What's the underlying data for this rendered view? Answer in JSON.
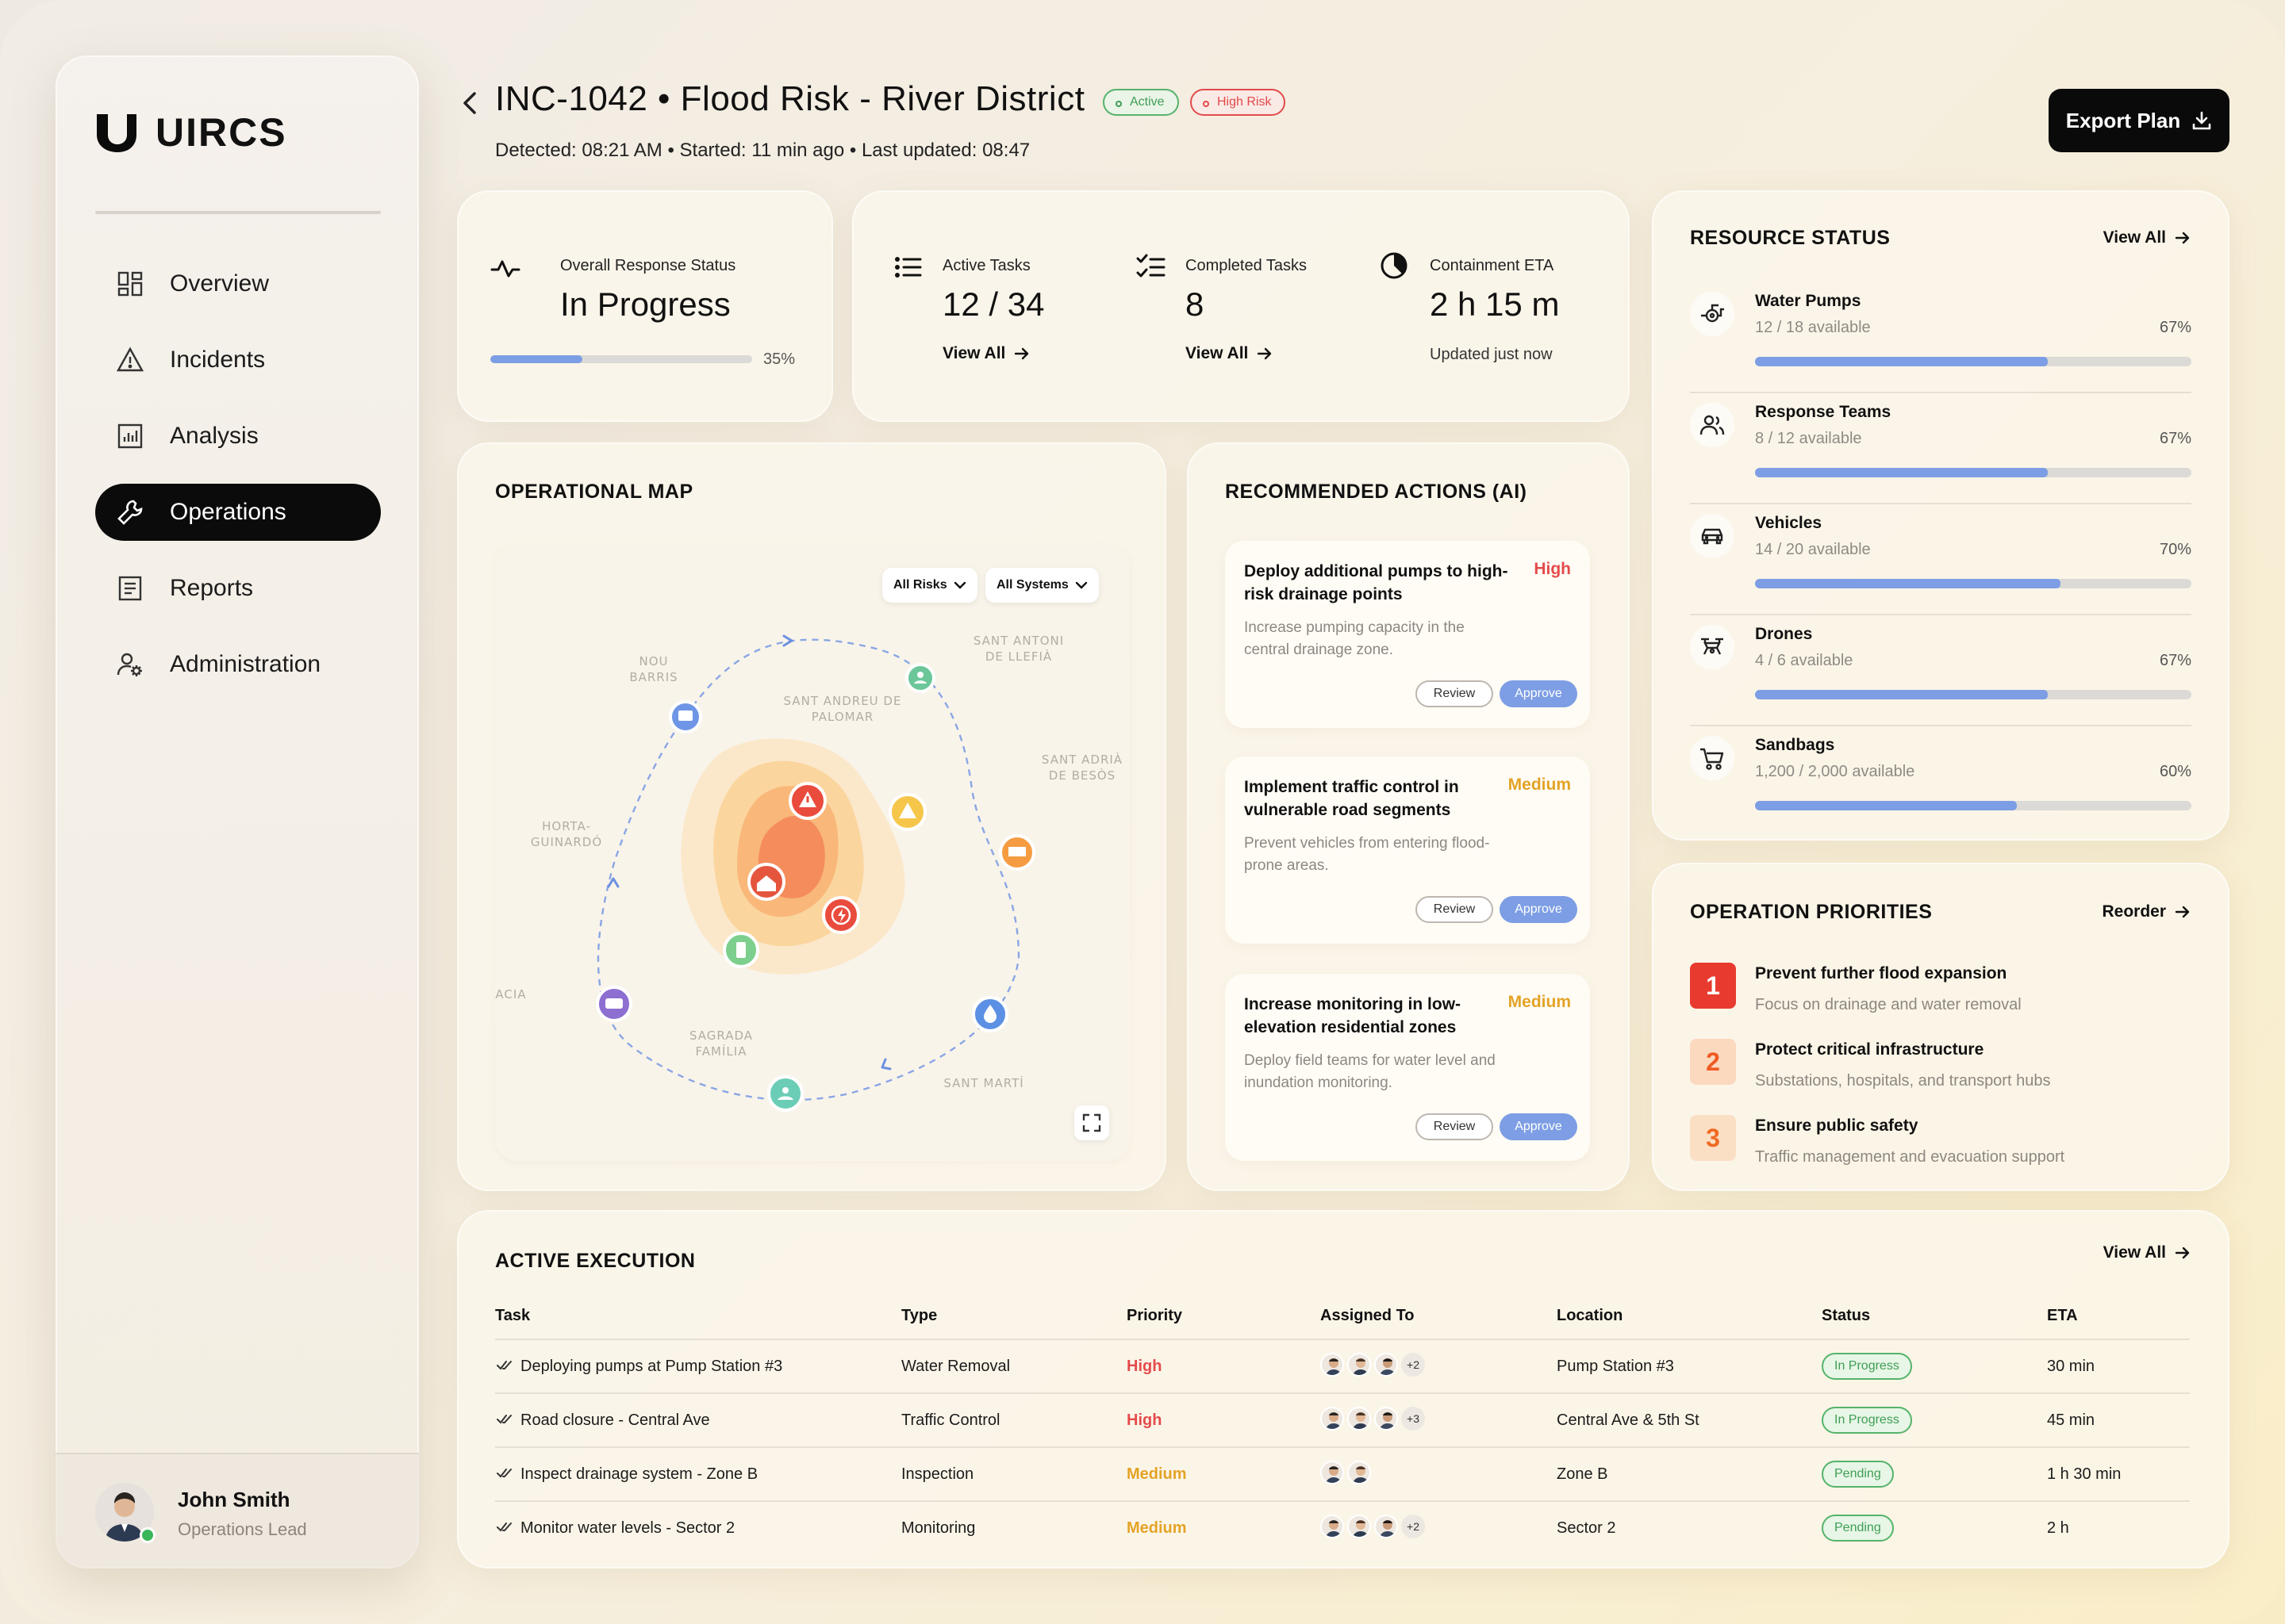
{
  "app": {
    "name": "UIRCS"
  },
  "sidebar": {
    "items": [
      {
        "label": "Overview",
        "icon": "grid-icon",
        "active": false
      },
      {
        "label": "Incidents",
        "icon": "warning-icon",
        "active": false
      },
      {
        "label": "Analysis",
        "icon": "chart-icon",
        "active": false
      },
      {
        "label": "Operations",
        "icon": "wrench-icon",
        "active": true
      },
      {
        "label": "Reports",
        "icon": "document-icon",
        "active": false
      },
      {
        "label": "Administration",
        "icon": "user-gear-icon",
        "active": false
      }
    ],
    "user": {
      "name": "John Smith",
      "role": "Operations Lead",
      "status": "online"
    }
  },
  "header": {
    "title": "INC-1042 • Flood Risk - River District",
    "badges": {
      "active": "Active",
      "risk": "High Risk"
    },
    "subtitle": "Detected: 08:21 AM • Started: 11 min ago • Last updated: 08:47",
    "export_label": "Export Plan"
  },
  "response": {
    "label": "Overall Response Status",
    "value": "In Progress",
    "progress_pct": 35,
    "progress_label": "35%"
  },
  "tasks": {
    "active_label": "Active Tasks",
    "active_value": "12 / 34",
    "completed_label": "Completed Tasks",
    "completed_value": "8",
    "eta_label": "Containment ETA",
    "eta_value": "2 h 15 m",
    "eta_note": "Updated just now",
    "view_all": "View All"
  },
  "resources": {
    "title": "RESOURCE STATUS",
    "view_all": "View All",
    "items": [
      {
        "name": "Water Pumps",
        "available": "12 / 18 available",
        "pct_label": "67%",
        "pct": 67,
        "icon": "pump-icon"
      },
      {
        "name": "Response Teams",
        "available": "8 / 12 available",
        "pct_label": "67%",
        "pct": 67,
        "icon": "team-icon"
      },
      {
        "name": "Vehicles",
        "available": "14 / 20 available",
        "pct_label": "70%",
        "pct": 70,
        "icon": "car-icon"
      },
      {
        "name": "Drones",
        "available": "4 / 6 available",
        "pct_label": "67%",
        "pct": 67,
        "icon": "drone-icon"
      },
      {
        "name": "Sandbags",
        "available": "1,200 / 2,000 available",
        "pct_label": "60%",
        "pct": 60,
        "icon": "cart-icon"
      }
    ]
  },
  "map": {
    "title": "OPERATIONAL MAP",
    "filters": [
      "All Risks",
      "All Systems"
    ],
    "places": [
      "NOU BARRIS",
      "SANT ANDREU DE PALOMAR",
      "SANT ANTONI DE LLEFIÀ",
      "SANT ADRIÀ DE BESÒS",
      "HORTA-GUINARDÓ",
      "ACIA",
      "SAGRADA FAMÍLIA",
      "SANT MARTÍ"
    ]
  },
  "actions": {
    "title": "RECOMMENDED ACTIONS (AI)",
    "review_label": "Review",
    "approve_label": "Approve",
    "items": [
      {
        "title": "Deploy additional pumps to high-risk drainage points",
        "priority": "High",
        "desc": "Increase pumping capacity in the central drainage zone."
      },
      {
        "title": "Implement traffic control in vulnerable road segments",
        "priority": "Medium",
        "desc": "Prevent vehicles from entering flood-prone areas."
      },
      {
        "title": "Increase monitoring in low-elevation residential zones",
        "priority": "Medium",
        "desc": "Deploy field teams for water level and inundation monitoring."
      }
    ]
  },
  "priorities": {
    "title": "OPERATION PRIORITIES",
    "reorder_label": "Reorder",
    "items": [
      {
        "num": "1",
        "title": "Prevent further flood expansion",
        "desc": "Focus on drainage and water removal"
      },
      {
        "num": "2",
        "title": "Protect critical infrastructure",
        "desc": "Substations, hospitals, and transport hubs"
      },
      {
        "num": "3",
        "title": "Ensure public safety",
        "desc": "Traffic management and evacuation support"
      }
    ]
  },
  "execution": {
    "title": "ACTIVE EXECUTION",
    "view_all": "View All",
    "columns": [
      "Task",
      "Type",
      "Priority",
      "Assigned To",
      "Location",
      "Status",
      "ETA"
    ],
    "rows": [
      {
        "task": "Deploying pumps at Pump Station #3",
        "type": "Water Removal",
        "priority": "High",
        "more": "+2",
        "location": "Pump Station #3",
        "status": "In Progress",
        "eta": "30 min"
      },
      {
        "task": "Road closure - Central Ave",
        "type": "Traffic Control",
        "priority": "High",
        "more": "+3",
        "location": "Central Ave & 5th St",
        "status": "In Progress",
        "eta": "45 min"
      },
      {
        "task": "Inspect drainage system - Zone B",
        "type": "Inspection",
        "priority": "Medium",
        "more": "",
        "location": "Zone B",
        "status": "Pending",
        "eta": "1 h 30 min"
      },
      {
        "task": "Monitor water levels - Sector 2",
        "type": "Monitoring",
        "priority": "Medium",
        "more": "+2",
        "location": "Sector 2",
        "status": "Pending",
        "eta": "2 h"
      }
    ]
  },
  "colors": {
    "accent": "#7d9ee4",
    "high": "#e44b4b",
    "medium": "#e3a326",
    "success": "#3f9e56"
  }
}
